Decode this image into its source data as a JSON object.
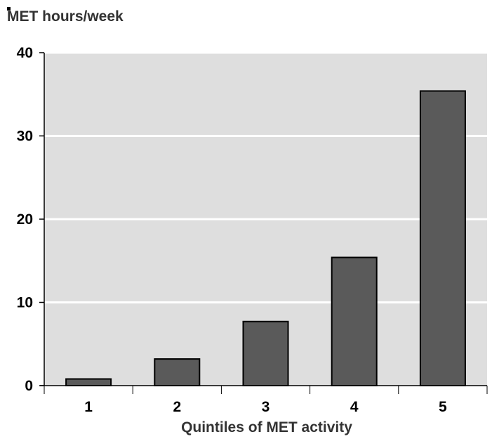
{
  "chart_data": {
    "type": "bar",
    "ylabel": "MET hours/week",
    "xlabel": "Quintiles of MET activity",
    "categories": [
      "1",
      "2",
      "3",
      "4",
      "5"
    ],
    "values": [
      0.8,
      3.2,
      7.7,
      15.4,
      35.4
    ],
    "ylim": [
      0,
      40
    ],
    "yticks": [
      0,
      10,
      20,
      30,
      40
    ],
    "ytick_labels": [
      "0",
      "10",
      "20",
      "30",
      "40"
    ],
    "grid": true,
    "colors": {
      "plot_bg": "#dedede",
      "bar": "#5a5a5a",
      "bar_edge": "#000000",
      "grid": "#ffffff"
    }
  }
}
